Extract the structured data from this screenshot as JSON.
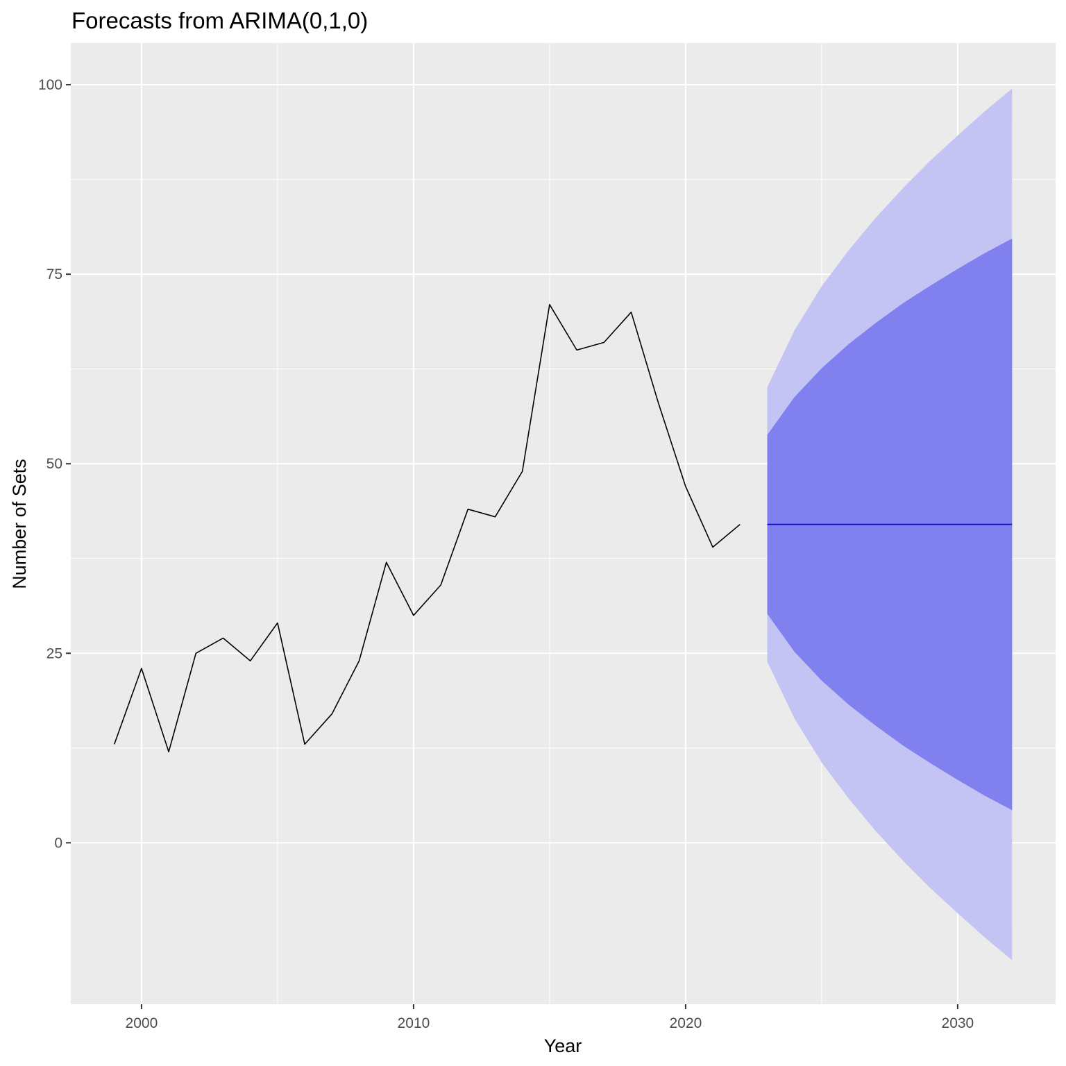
{
  "chart_data": {
    "type": "line",
    "title": "Forecasts from ARIMA(0,1,0)",
    "xlabel": "Year",
    "ylabel": "Number of Sets",
    "xlim": [
      1997.4,
      2033.6
    ],
    "ylim": [
      -21.3,
      105.5
    ],
    "x_ticks": [
      2000,
      2010,
      2020,
      2030
    ],
    "x_minor_ticks": [
      2005,
      2015,
      2025
    ],
    "y_ticks": [
      0,
      25,
      50,
      75,
      100
    ],
    "y_minor_ticks": [
      12.5,
      37.5,
      62.5,
      87.5
    ],
    "grid": true,
    "colors": {
      "panel": "#ebebeb",
      "grid": "#ffffff",
      "series": "#000000",
      "forecast_line": "#0000ff",
      "band_80": "#8080ee",
      "band_95": "#c4c4f4",
      "tick": "#333333"
    },
    "series": [
      {
        "x": [
          1999,
          2000,
          2001,
          2002,
          2003,
          2004,
          2005,
          2006,
          2007,
          2008,
          2009,
          2010,
          2011,
          2012,
          2013,
          2014,
          2015,
          2016,
          2017,
          2018,
          2019,
          2020,
          2021,
          2022
        ],
        "values": [
          13,
          23,
          12,
          25,
          27,
          24,
          29,
          13,
          17,
          24,
          37,
          30,
          34,
          44,
          43,
          49,
          71,
          65,
          66,
          70,
          58,
          47,
          39,
          42
        ]
      }
    ],
    "forecast": {
      "x": [
        2023,
        2024,
        2025,
        2026,
        2027,
        2028,
        2029,
        2030,
        2031,
        2032
      ],
      "mean": [
        42,
        42,
        42,
        42,
        42,
        42,
        42,
        42,
        42,
        42
      ],
      "lo80": [
        30.2,
        25.2,
        21.4,
        18.2,
        15.4,
        12.8,
        10.5,
        8.3,
        6.2,
        4.3
      ],
      "hi80": [
        53.8,
        58.8,
        62.6,
        65.8,
        68.6,
        71.2,
        73.5,
        75.7,
        77.8,
        79.7
      ],
      "lo95": [
        23.9,
        16.4,
        10.6,
        5.8,
        1.5,
        -2.4,
        -6.0,
        -9.3,
        -12.5,
        -15.5
      ],
      "hi95": [
        60.1,
        67.6,
        73.4,
        78.2,
        82.5,
        86.4,
        90.0,
        93.3,
        96.5,
        99.5
      ]
    }
  }
}
